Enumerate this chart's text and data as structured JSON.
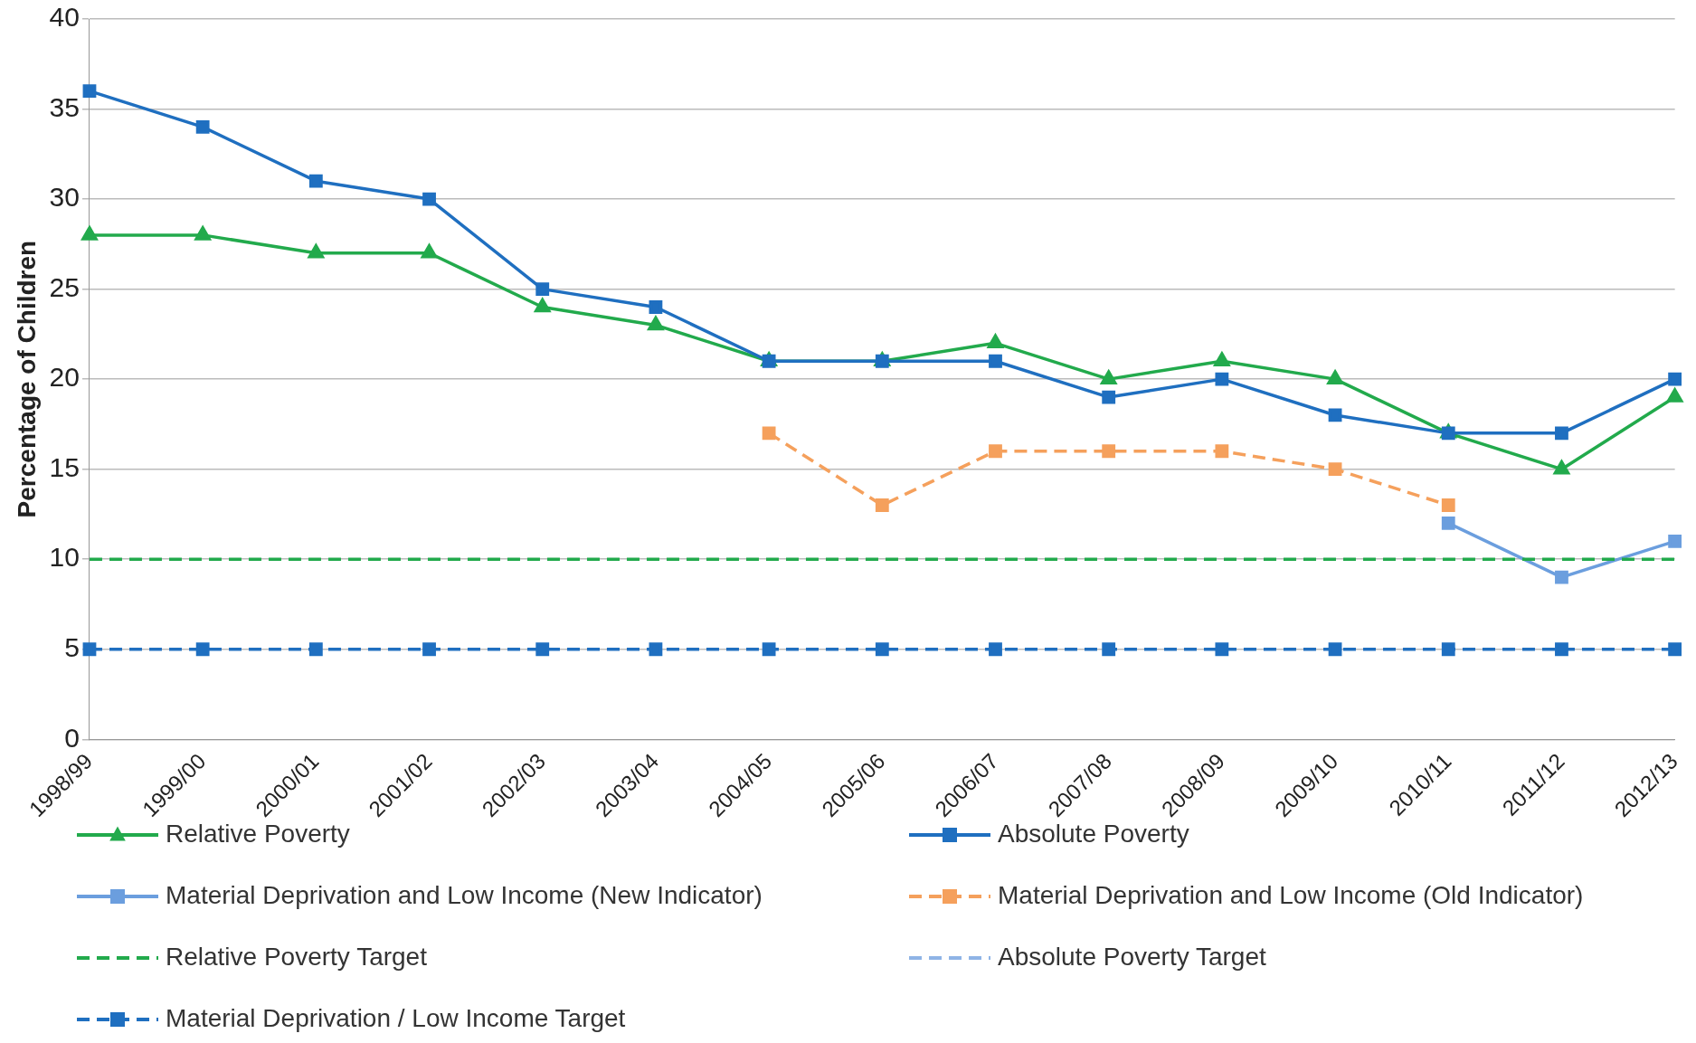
{
  "chart_data": {
    "type": "line",
    "ylabel": "Percentage of Children",
    "categories": [
      "1998/99",
      "1999/00",
      "2000/01",
      "2001/02",
      "2002/03",
      "2003/04",
      "2004/05",
      "2005/06",
      "2006/07",
      "2007/08",
      "2008/09",
      "2009/10",
      "2010/11",
      "2011/12",
      "2012/13"
    ],
    "series": [
      {
        "name": "Relative Poverty",
        "color": "#22aa4c",
        "marker": "triangle",
        "line_style": "solid",
        "values": [
          28,
          28,
          27,
          27,
          24,
          23,
          21,
          21,
          22,
          20,
          21,
          20,
          17,
          15,
          19
        ]
      },
      {
        "name": "Absolute Poverty",
        "color": "#1f6fc0",
        "marker": "square",
        "line_style": "solid",
        "values": [
          36,
          34,
          31,
          30,
          25,
          24,
          21,
          21,
          21,
          19,
          20,
          18,
          17,
          17,
          20
        ]
      },
      {
        "name": "Material Deprivation and Low Income (New Indicator)",
        "color": "#6b9ede",
        "marker": "square",
        "line_style": "solid",
        "values": [
          null,
          null,
          null,
          null,
          null,
          null,
          null,
          null,
          null,
          null,
          null,
          null,
          12,
          9,
          11
        ]
      },
      {
        "name": "Material Deprivation and Low Income (Old Indicator)",
        "color": "#f5a05c",
        "marker": "square",
        "line_style": "dashed",
        "values": [
          null,
          null,
          null,
          null,
          null,
          null,
          17,
          13,
          16,
          16,
          16,
          15,
          13,
          null,
          null
        ]
      },
      {
        "name": "Relative Poverty Target",
        "color": "#22aa4c",
        "marker": "none",
        "line_style": "dashed",
        "values": [
          10,
          10,
          10,
          10,
          10,
          10,
          10,
          10,
          10,
          10,
          10,
          10,
          10,
          10,
          10
        ]
      },
      {
        "name": "Absolute Poverty Target",
        "color": "#8fb4e6",
        "marker": "none",
        "line_style": "dashed",
        "values": [
          null,
          null,
          null,
          null,
          null,
          null,
          null,
          null,
          null,
          null,
          null,
          null,
          null,
          null,
          null
        ]
      },
      {
        "name": "Material Deprivation / Low Income Target",
        "color": "#1f6fc0",
        "marker": "square",
        "line_style": "dashed",
        "values": [
          5,
          5,
          5,
          5,
          5,
          5,
          5,
          5,
          5,
          5,
          5,
          5,
          5,
          5,
          5
        ]
      }
    ],
    "ylim": [
      0,
      40
    ],
    "yticks": [
      0,
      5,
      10,
      15,
      20,
      25,
      30,
      35,
      40
    ],
    "grid": "y",
    "legend": "bottom"
  }
}
